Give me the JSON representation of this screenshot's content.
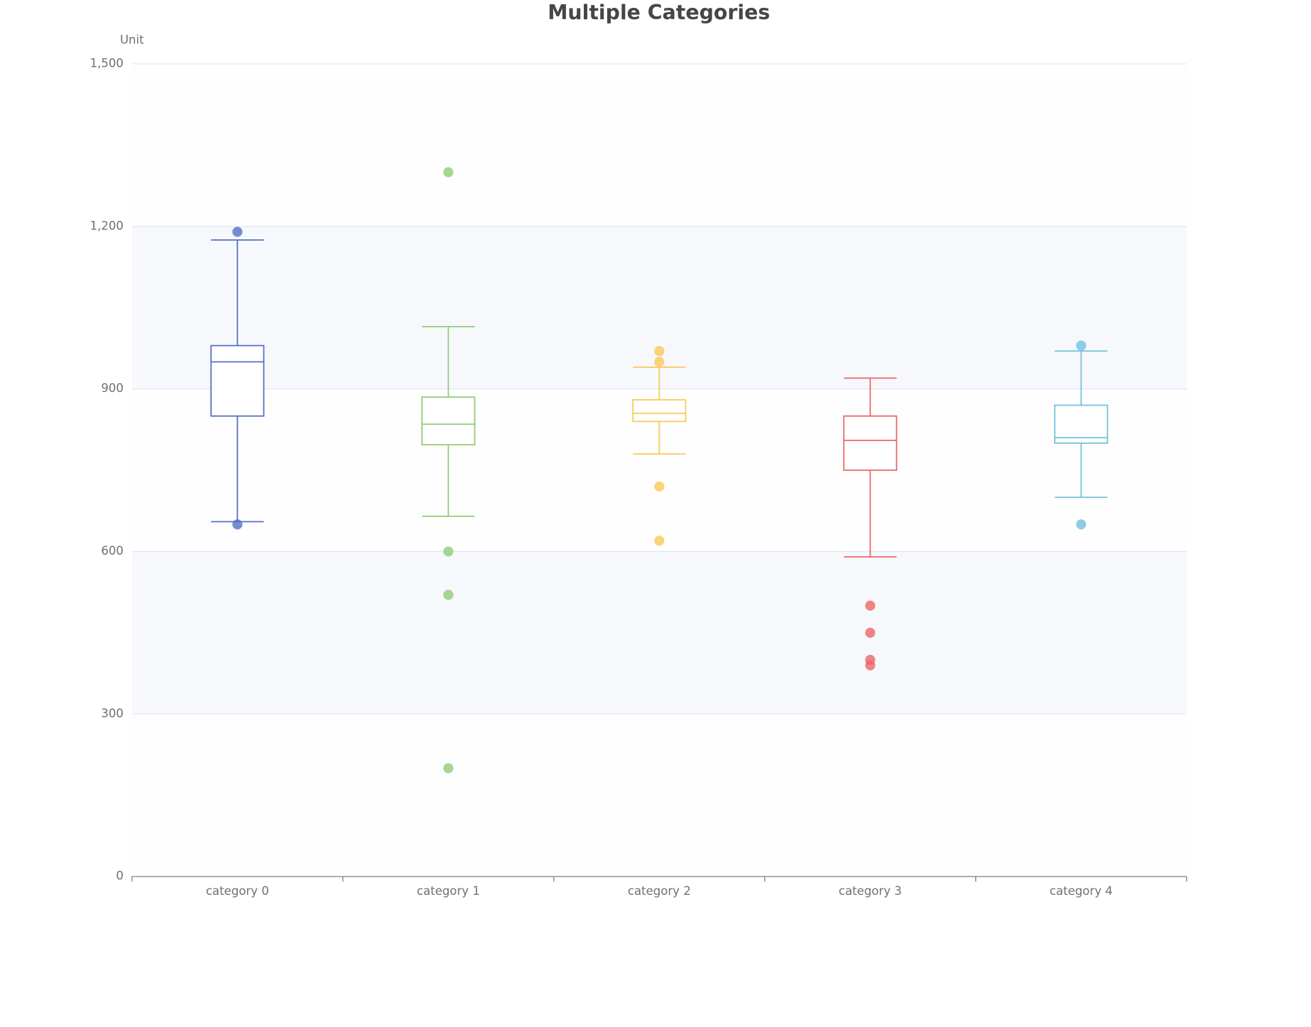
{
  "chart_data": {
    "type": "boxplot",
    "title": "Multiple Categories",
    "y_axis_label": "Unit",
    "categories": [
      "category 0",
      "category 1",
      "category 2",
      "category 3",
      "category 4"
    ],
    "boxes": [
      {
        "color": "#5470c6",
        "values": [
          655,
          850,
          950,
          980,
          1175
        ],
        "outliers": [
          1190,
          650
        ]
      },
      {
        "color": "#91cc75",
        "values": [
          665,
          797,
          835,
          885,
          1015
        ],
        "outliers": [
          1300,
          600,
          520,
          200
        ]
      },
      {
        "color": "#fac858",
        "values": [
          780,
          840,
          855,
          880,
          940
        ],
        "outliers": [
          970,
          950,
          720,
          620
        ]
      },
      {
        "color": "#ee6666",
        "values": [
          590,
          750,
          805,
          850,
          920
        ],
        "outliers": [
          500,
          450,
          400,
          390
        ]
      },
      {
        "color": "#73c0de",
        "values": [
          700,
          800,
          810,
          870,
          970
        ],
        "outliers": [
          980,
          650
        ]
      }
    ],
    "ylim": [
      0,
      1500
    ],
    "yticks": [
      0,
      300,
      600,
      900,
      {
        "value": 1200,
        "label": "1,200"
      },
      {
        "value": 1500,
        "label": "1,500"
      }
    ],
    "grid": true,
    "split_area": true
  }
}
